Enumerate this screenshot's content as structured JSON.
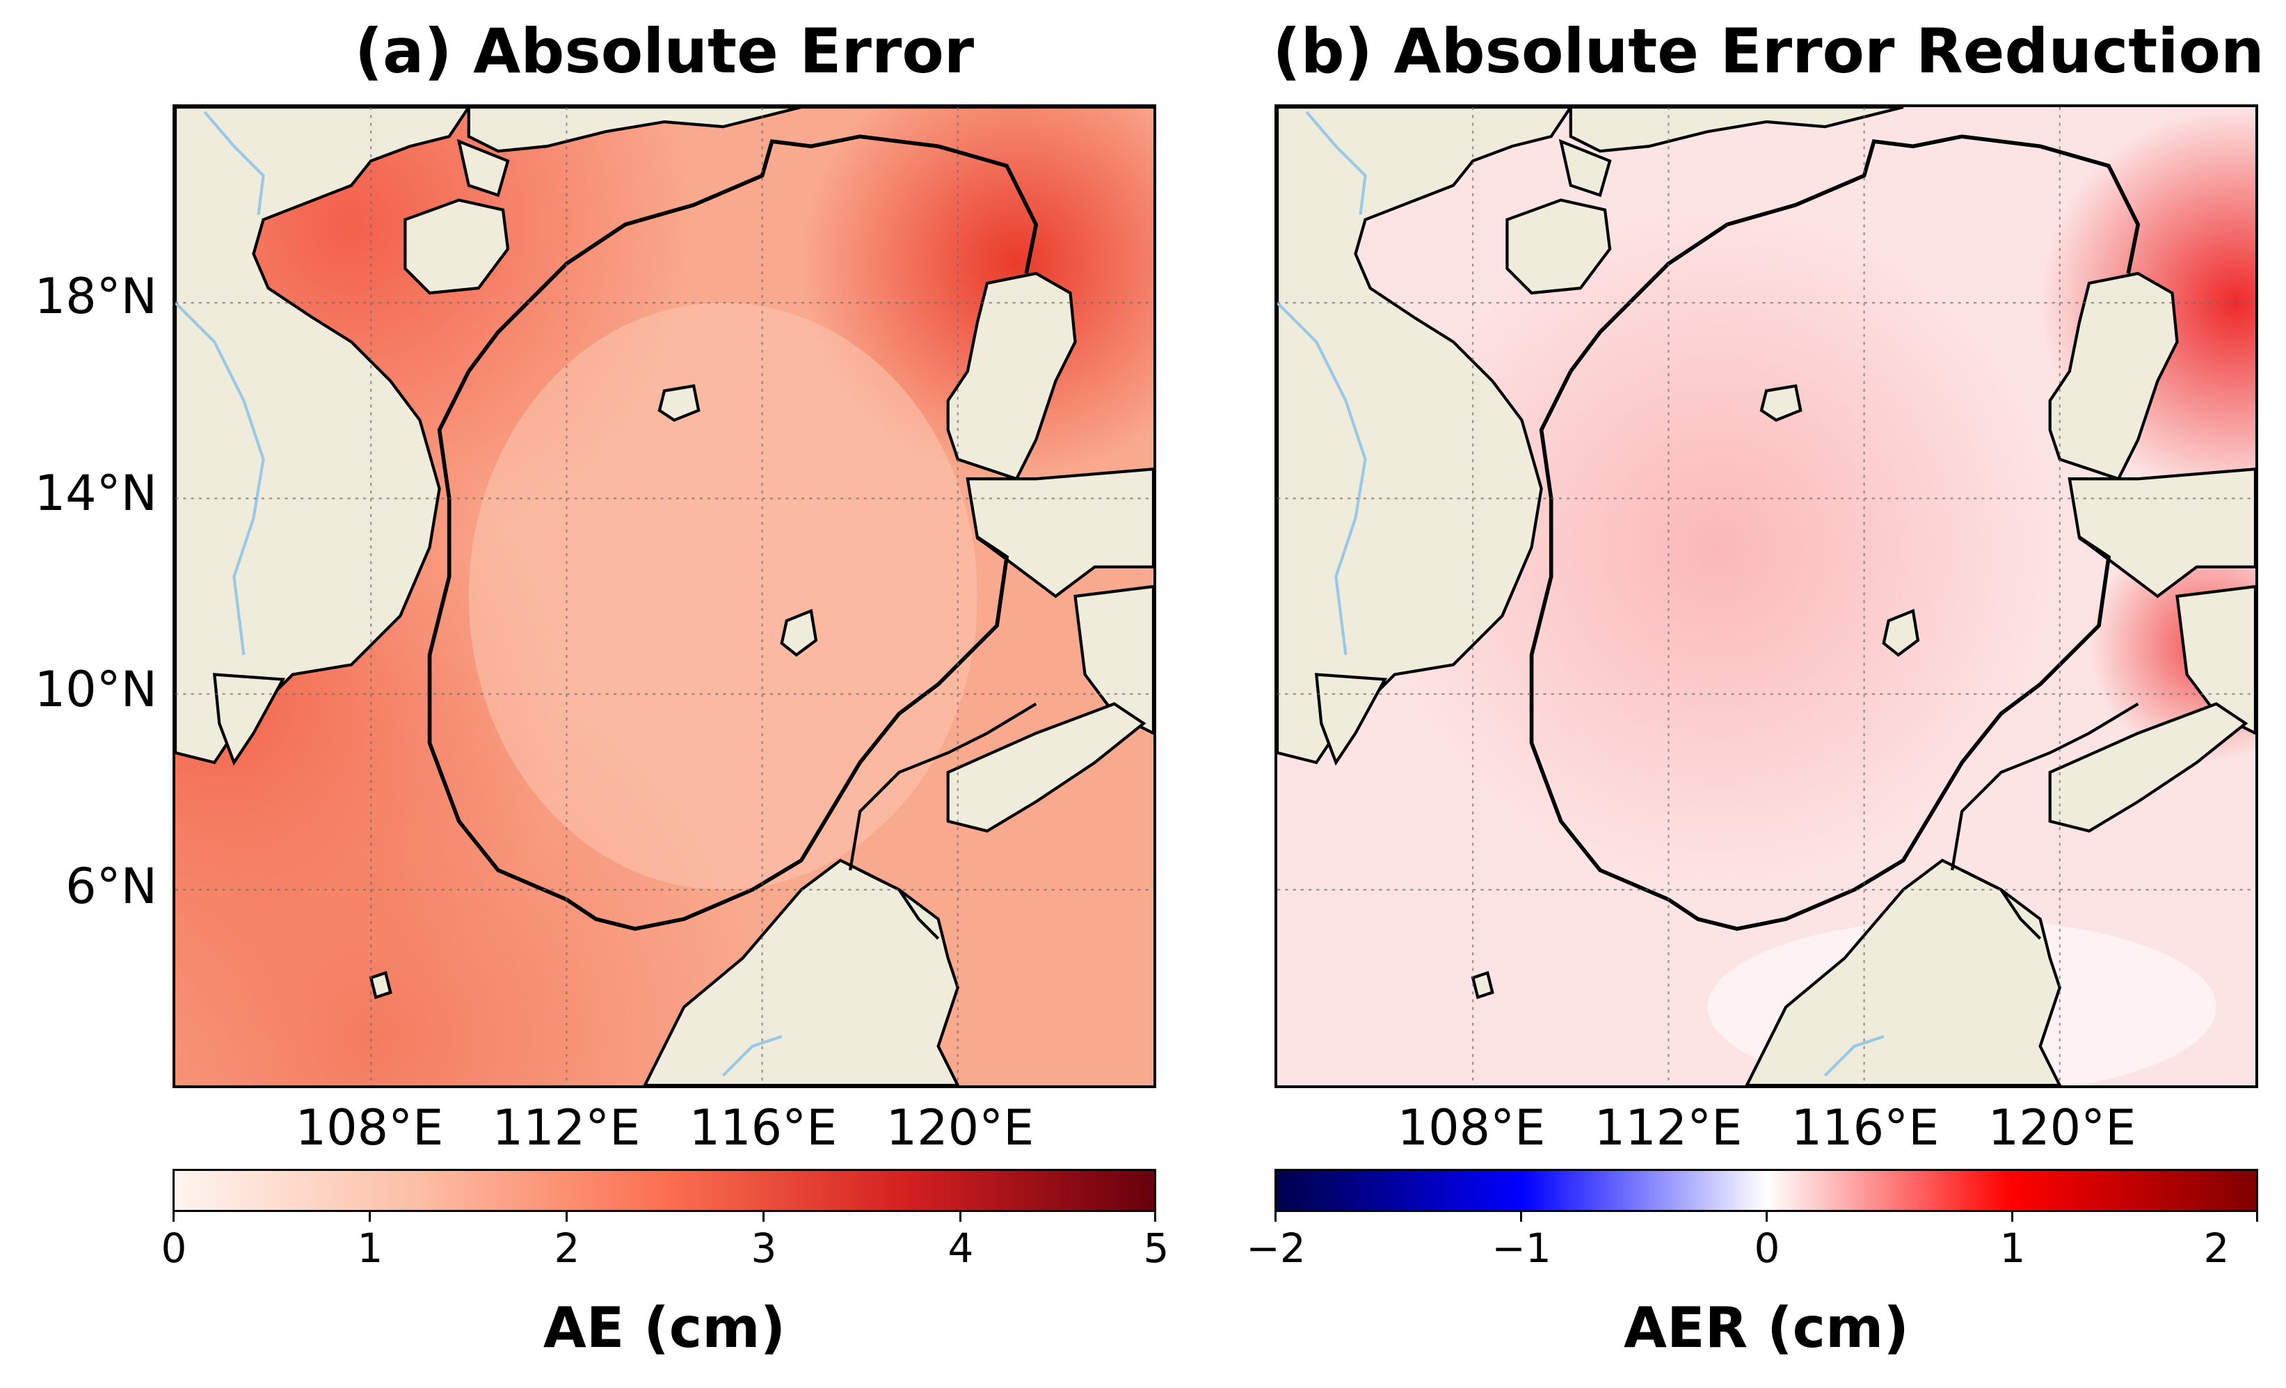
{
  "panel_a": {
    "title": "(a) Absolute Error",
    "colorbar": {
      "label": "AE (cm)",
      "ticks": [
        "0",
        "1",
        "2",
        "3",
        "4",
        "5"
      ],
      "range": [
        0,
        5
      ],
      "colormap": [
        "#fff5f0",
        "#fcbea5",
        "#fb7050",
        "#d32020",
        "#67000d"
      ]
    }
  },
  "panel_b": {
    "title": "(b) Absolute Error Reduction",
    "colorbar": {
      "label": "AER (cm)",
      "ticks": [
        "−2",
        "−1",
        "0",
        "1",
        "2"
      ],
      "range": [
        -2,
        2
      ],
      "colormap": [
        "#00004c",
        "#0000ff",
        "#ffffff",
        "#ff0000",
        "#7f0000"
      ]
    }
  },
  "axes": {
    "lat_labels": [
      "18°N",
      "14°N",
      "10°N",
      "6°N"
    ],
    "lon_labels": [
      "108°E",
      "112°E",
      "116°E",
      "120°E"
    ],
    "lat_range": [
      2,
      22
    ],
    "lon_range": [
      104,
      124
    ],
    "gridlines": true
  },
  "colors": {
    "land": "#efecdc",
    "river": "#9cc8e8",
    "coastline": "#000000",
    "isobath": "#000000"
  }
}
